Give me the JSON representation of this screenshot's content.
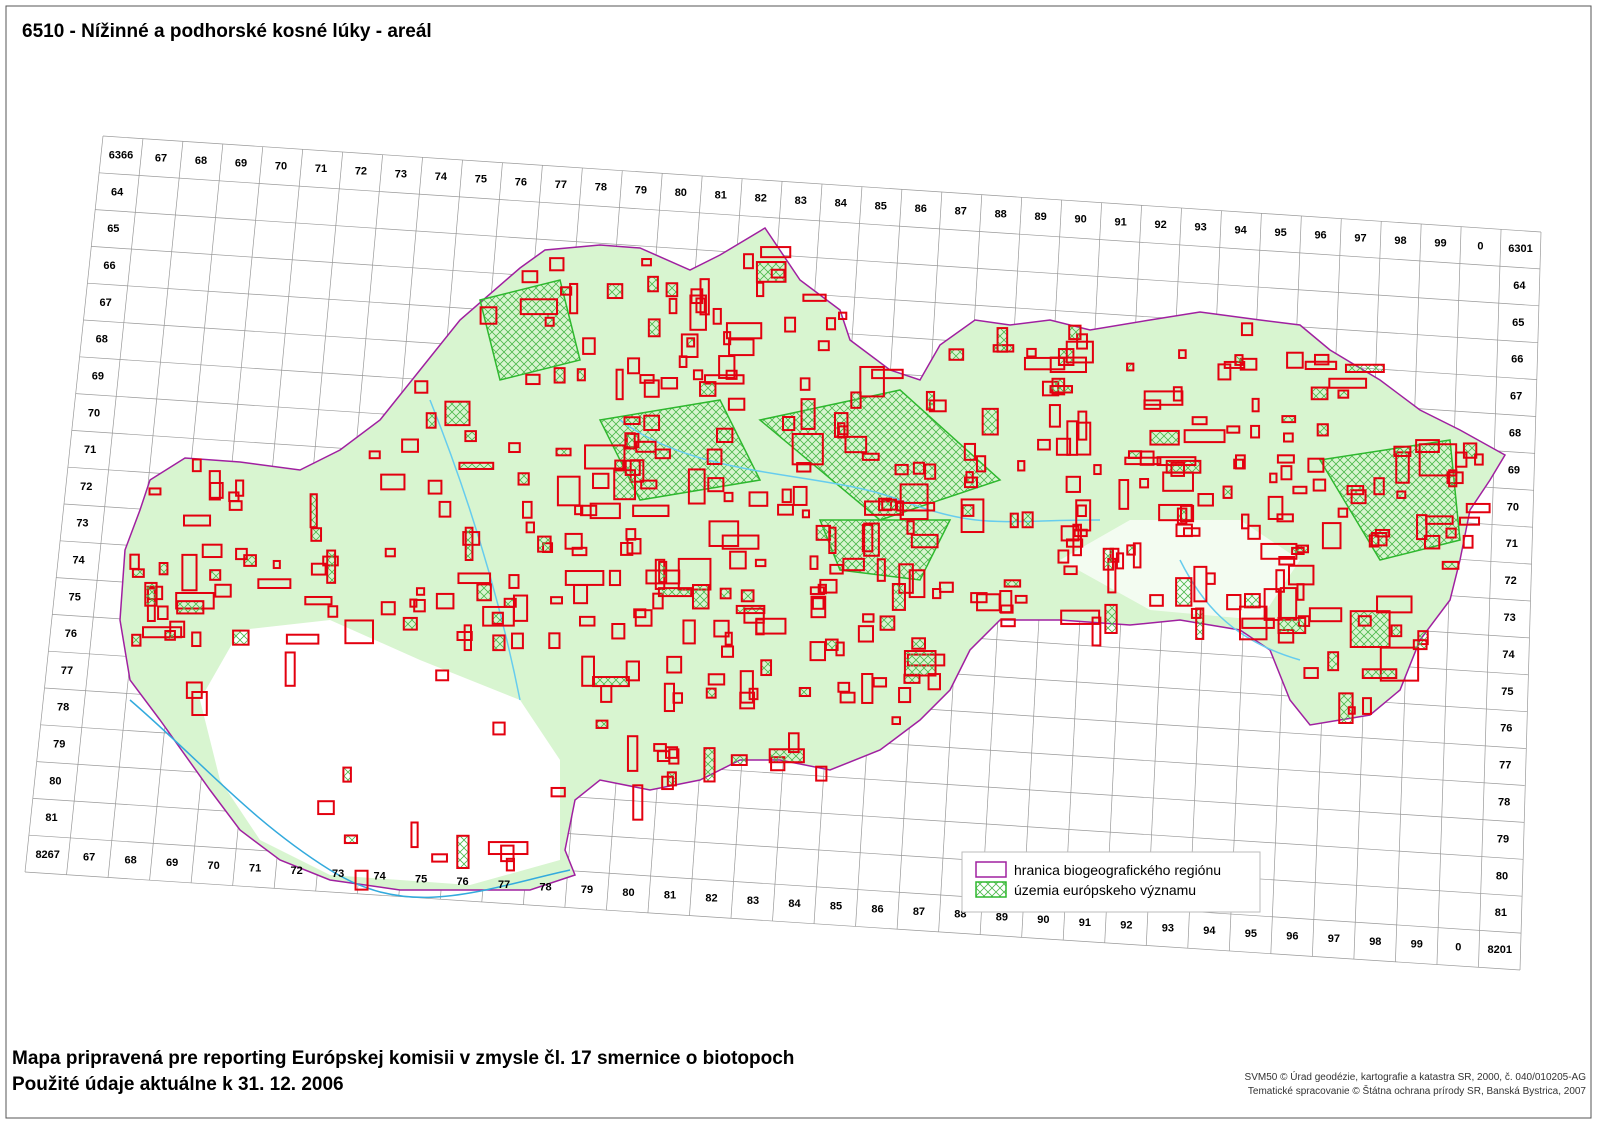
{
  "title": "6510 - Nížinné a podhorské kosné lúky - areál",
  "grid": {
    "top": [
      "6366",
      "67",
      "68",
      "69",
      "70",
      "71",
      "72",
      "73",
      "74",
      "75",
      "76",
      "77",
      "78",
      "79",
      "80",
      "81",
      "82",
      "83",
      "84",
      "85",
      "86",
      "87",
      "88",
      "89",
      "90",
      "91",
      "92",
      "93",
      "94",
      "95",
      "96",
      "97",
      "98",
      "99",
      "0",
      "6301"
    ],
    "left": [
      "64",
      "65",
      "66",
      "67",
      "68",
      "69",
      "70",
      "71",
      "72",
      "73",
      "74",
      "75",
      "76",
      "77",
      "78",
      "79",
      "80",
      "81"
    ],
    "right": [
      "64",
      "65",
      "66",
      "67",
      "68",
      "69",
      "70",
      "71",
      "72",
      "73",
      "74",
      "75",
      "76",
      "77",
      "78",
      "79",
      "80",
      "81"
    ],
    "bottom": [
      "8267",
      "67",
      "68",
      "69",
      "70",
      "71",
      "72",
      "73",
      "74",
      "75",
      "76",
      "77",
      "78",
      "79",
      "80",
      "81",
      "82",
      "83",
      "84",
      "85",
      "86",
      "87",
      "88",
      "89",
      "90",
      "91",
      "92",
      "93",
      "94",
      "95",
      "96",
      "97",
      "98",
      "99",
      "0",
      "8201"
    ]
  },
  "legend": [
    "hranica biogeografického regiónu",
    "územia európskeho významu"
  ],
  "footer": [
    "Mapa pripravená pre reporting Európskej komisii v zmysle čl. 17 smernice o biotopoch",
    "Použité údaje aktuálne k 31. 12. 2006"
  ],
  "credits": [
    "SVM50 © Úrad geodézie, kartografie a katastra SR, 2000, č. 040/010205-AG",
    "Tematické spracovanie © Štátna ochrana prírody SR, Banská Bystrica, 2007"
  ]
}
